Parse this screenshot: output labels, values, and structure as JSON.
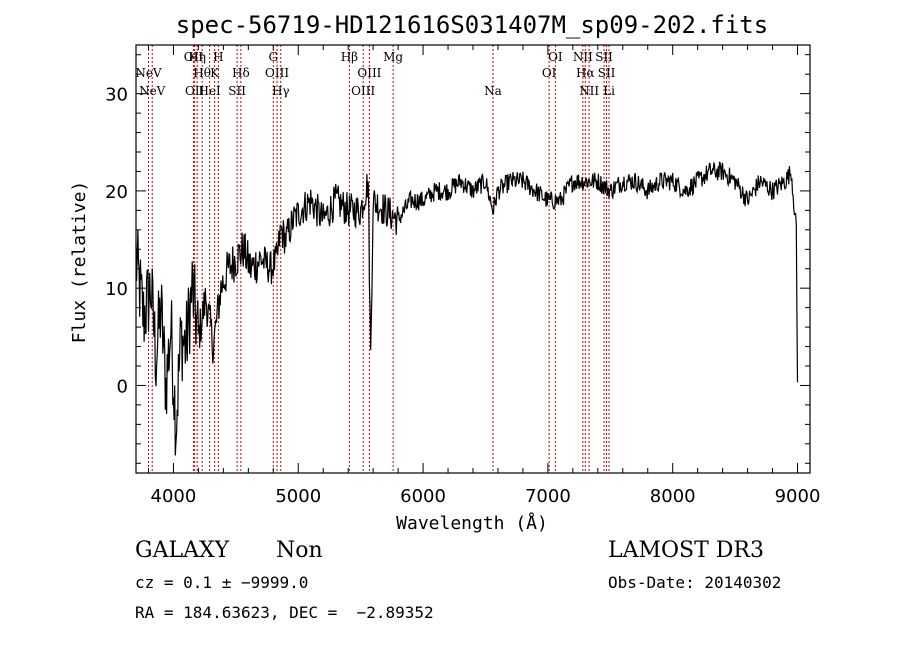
{
  "chart_data": {
    "type": "line",
    "title": "spec-56719-HD121616S031407M_sp09-202.fits",
    "xlabel": "Wavelength (Å)",
    "ylabel": "Flux (relative)",
    "xlim": [
      3700,
      9100
    ],
    "ylim": [
      -9,
      35
    ],
    "xticks": [
      4000,
      5000,
      6000,
      7000,
      8000,
      9000
    ],
    "yticks": [
      0,
      10,
      20,
      30
    ],
    "series": [
      {
        "name": "spectrum",
        "x": [
          3700,
          3760,
          3820,
          3860,
          3900,
          3940,
          3980,
          4020,
          4060,
          4100,
          4150,
          4200,
          4260,
          4320,
          4380,
          4440,
          4500,
          4560,
          4620,
          4700,
          4780,
          4830,
          4860,
          4900,
          4960,
          5020,
          5100,
          5200,
          5300,
          5400,
          5500,
          5560,
          5580,
          5600,
          5700,
          5800,
          5900,
          6000,
          6100,
          6200,
          6300,
          6400,
          6500,
          6560,
          6600,
          6700,
          6800,
          6900,
          7000,
          7100,
          7200,
          7300,
          7400,
          7500,
          7600,
          7700,
          7800,
          7900,
          8000,
          8100,
          8200,
          8300,
          8400,
          8500,
          8600,
          8700,
          8800,
          8900,
          8950,
          8990,
          9000
        ],
        "y": [
          13,
          7,
          10,
          3,
          8,
          0,
          6,
          -4,
          5,
          4,
          10,
          5,
          9,
          4,
          10,
          12,
          13,
          14,
          12,
          13,
          12,
          13,
          16,
          15,
          17,
          18,
          19,
          17,
          19,
          18,
          18,
          21,
          3,
          19,
          18,
          17,
          19,
          19,
          20,
          20,
          21,
          20,
          21,
          18,
          20,
          21,
          21,
          20,
          19,
          19,
          21,
          21,
          21,
          20,
          21,
          21,
          20,
          21,
          21,
          20,
          21,
          22,
          22,
          21,
          19,
          21,
          20,
          21,
          22,
          16,
          0
        ]
      }
    ],
    "lines": [
      {
        "name": "NeV",
        "x": 3800,
        "row": 2
      },
      {
        "name": "NeV",
        "x": 3830,
        "row": 4
      },
      {
        "name": "OII",
        "x": 4160,
        "row": 1
      },
      {
        "name": "OII",
        "x": 4170,
        "row": 4
      },
      {
        "name": "Hη",
        "x": 4190,
        "row": 1
      },
      {
        "name": "Hθ",
        "x": 4230,
        "row": 2
      },
      {
        "name": "HeI",
        "x": 4290,
        "row": 4
      },
      {
        "name": "K",
        "x": 4330,
        "row": 2
      },
      {
        "name": "H",
        "x": 4360,
        "row": 1
      },
      {
        "name": "SII",
        "x": 4510,
        "row": 4
      },
      {
        "name": "Hδ",
        "x": 4540,
        "row": 2
      },
      {
        "name": "G",
        "x": 4800,
        "row": 1
      },
      {
        "name": "OIII",
        "x": 4830,
        "row": 2
      },
      {
        "name": "Hγ",
        "x": 4860,
        "row": 4
      },
      {
        "name": "Hβ",
        "x": 5410,
        "row": 1
      },
      {
        "name": "OIII",
        "x": 5520,
        "row": 4
      },
      {
        "name": "OIII",
        "x": 5570,
        "row": 2
      },
      {
        "name": "Mg",
        "x": 5760,
        "row": 1
      },
      {
        "name": "Na",
        "x": 6560,
        "row": 4
      },
      {
        "name": "OI",
        "x": 7010,
        "row": 2
      },
      {
        "name": "OI",
        "x": 7060,
        "row": 1
      },
      {
        "name": "NII",
        "x": 7280,
        "row": 1
      },
      {
        "name": "Hα",
        "x": 7300,
        "row": 2
      },
      {
        "name": "NII",
        "x": 7330,
        "row": 4
      },
      {
        "name": "SII",
        "x": 7450,
        "row": 1
      },
      {
        "name": "SII",
        "x": 7470,
        "row": 2
      },
      {
        "name": "Li",
        "x": 7490,
        "row": 4
      }
    ]
  },
  "info": {
    "object_class": "GALAXY",
    "subclass": "Non",
    "redshift_line": "cz = 0.1 ± −9999.0",
    "coords_line": "RA = 184.63623, DEC =  −2.89352",
    "survey": "LAMOST DR3",
    "obs_date": "Obs-Date: 20140302"
  },
  "colors": {
    "line_marker": "#cc0000",
    "spectrum": "#000000"
  }
}
